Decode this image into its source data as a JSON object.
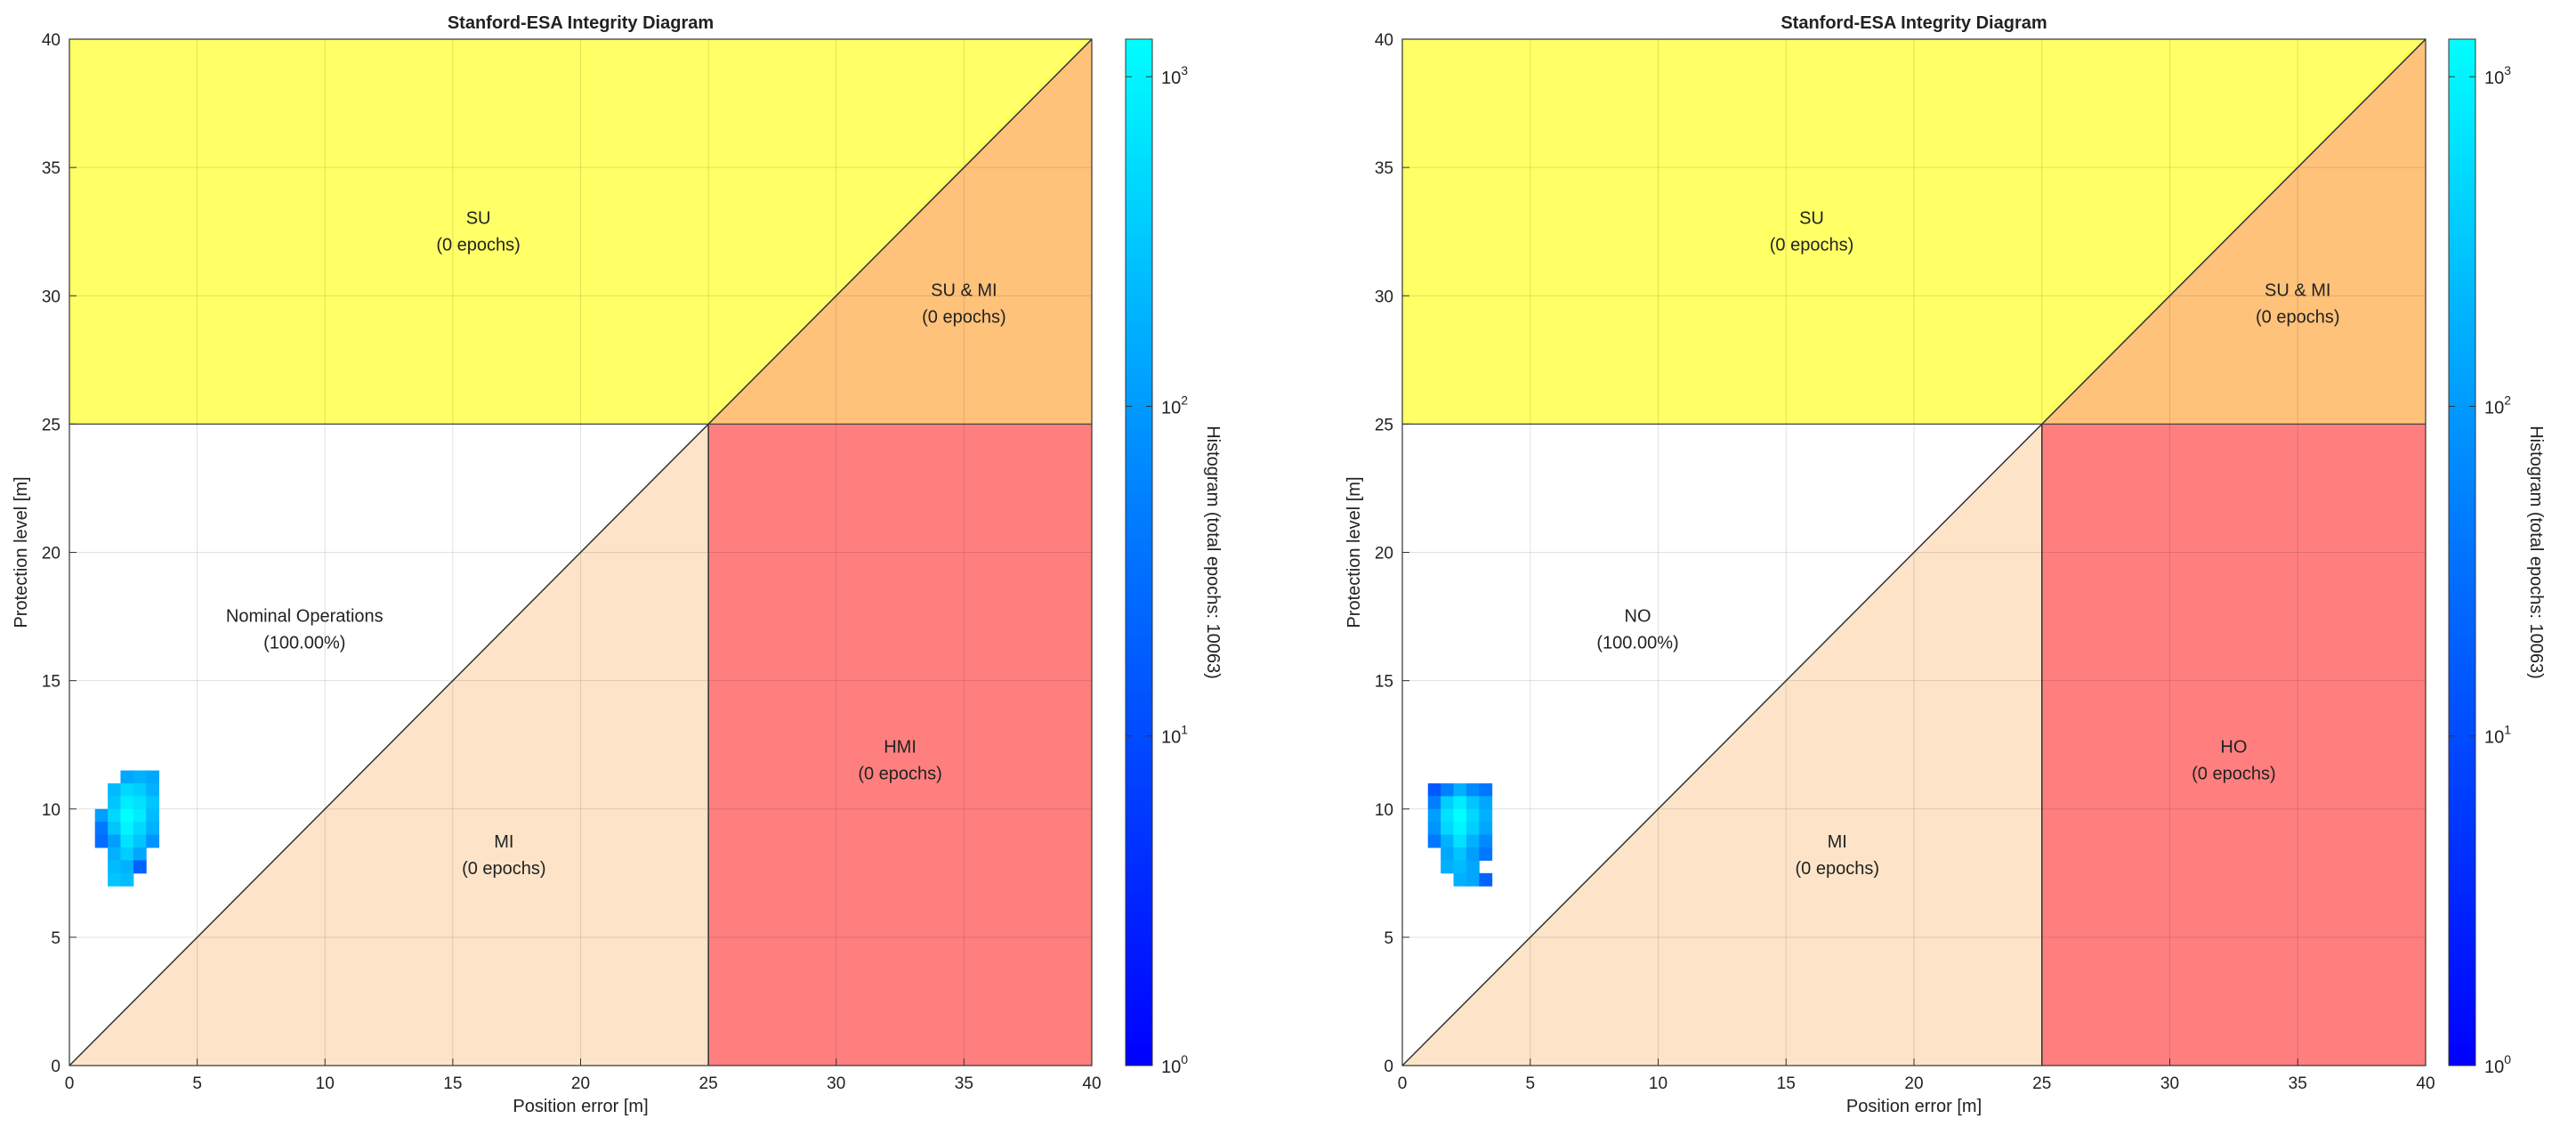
{
  "chart_data": [
    {
      "type": "heatmap",
      "title": "Stanford-ESA Integrity Diagram",
      "xlabel": "Position error [m]",
      "ylabel": "Protection level [m]",
      "xlim": [
        0,
        40
      ],
      "ylim": [
        0,
        40
      ],
      "xticks": [
        0,
        5,
        10,
        15,
        20,
        25,
        30,
        35,
        40
      ],
      "yticks": [
        0,
        5,
        10,
        15,
        20,
        25,
        30,
        35,
        40
      ],
      "alert_limit": 25,
      "grid": true,
      "colorbar": {
        "label": "Histogram (total epochs: 10063)",
        "scale": "log",
        "range": [
          1,
          1300
        ],
        "ticks": [
          {
            "value": 1,
            "base": "10",
            "exp": "0"
          },
          {
            "value": 10,
            "base": "10",
            "exp": "1"
          },
          {
            "value": 100,
            "base": "10",
            "exp": "2"
          },
          {
            "value": 1000,
            "base": "10",
            "exp": "3"
          }
        ],
        "color_low": "#0000ff",
        "color_high": "#00ffff"
      },
      "regions": [
        {
          "id": "su",
          "name": "SU",
          "detail": "(0 epochs)",
          "color": "#ffff66",
          "label_at": [
            16,
            32.8
          ]
        },
        {
          "id": "su_mi",
          "name": "SU & MI",
          "detail": "(0 epochs)",
          "color": "#ffc27a",
          "label_at": [
            35,
            30
          ]
        },
        {
          "id": "mi",
          "name": "MI",
          "detail": "(0 epochs)",
          "color": "#fde4c8",
          "label_at": [
            17,
            8.5
          ]
        },
        {
          "id": "hmi",
          "name": "HMI",
          "detail": "(0 epochs)",
          "color": "#ff7f7f",
          "label_at": [
            32.5,
            12.2
          ]
        },
        {
          "id": "no",
          "name": "Nominal Operations",
          "detail": "(100.00%)",
          "color": "#ffffff",
          "label_at": [
            9.2,
            17.3
          ]
        }
      ],
      "histogram": {
        "bin_size": 0.5,
        "cells": [
          [
            2,
            11,
            0.55
          ],
          [
            2.5,
            11,
            0.6
          ],
          [
            3,
            11,
            0.55
          ],
          [
            1.5,
            10.5,
            0.65
          ],
          [
            2,
            10.5,
            0.8
          ],
          [
            2.5,
            10.5,
            0.75
          ],
          [
            3,
            10.5,
            0.6
          ],
          [
            1.5,
            10,
            0.7
          ],
          [
            2,
            10,
            0.9
          ],
          [
            2.5,
            10,
            0.85
          ],
          [
            3,
            10,
            0.7
          ],
          [
            1,
            9.5,
            0.5
          ],
          [
            1.5,
            9.5,
            0.8
          ],
          [
            2,
            9.5,
            1.0
          ],
          [
            2.5,
            9.5,
            0.9
          ],
          [
            3,
            9.5,
            0.65
          ],
          [
            1,
            9,
            0.3
          ],
          [
            1.5,
            9,
            0.7
          ],
          [
            2,
            9,
            0.95
          ],
          [
            2.5,
            9,
            0.8
          ],
          [
            3,
            9,
            0.6
          ],
          [
            1,
            8.5,
            0.25
          ],
          [
            1.5,
            8.5,
            0.5
          ],
          [
            2,
            8.5,
            0.85
          ],
          [
            2.5,
            8.5,
            0.7
          ],
          [
            3,
            8.5,
            0.45
          ],
          [
            1.5,
            8,
            0.6
          ],
          [
            2,
            8,
            0.75
          ],
          [
            2.5,
            8,
            0.55
          ],
          [
            1.5,
            7.5,
            0.65
          ],
          [
            2,
            7.5,
            0.6
          ],
          [
            2.5,
            7.5,
            0.2
          ],
          [
            1.5,
            7,
            0.7
          ],
          [
            2,
            7,
            0.65
          ]
        ]
      }
    },
    {
      "type": "heatmap",
      "title": "Stanford-ESA Integrity Diagram",
      "xlabel": "Position error [m]",
      "ylabel": "Protection level [m]",
      "xlim": [
        0,
        40
      ],
      "ylim": [
        0,
        40
      ],
      "xticks": [
        0,
        5,
        10,
        15,
        20,
        25,
        30,
        35,
        40
      ],
      "yticks": [
        0,
        5,
        10,
        15,
        20,
        25,
        30,
        35,
        40
      ],
      "alert_limit": 25,
      "grid": true,
      "colorbar": {
        "label": "Histogram (total epochs: 10063)",
        "scale": "log",
        "range": [
          1,
          1300
        ],
        "ticks": [
          {
            "value": 1,
            "base": "10",
            "exp": "0"
          },
          {
            "value": 10,
            "base": "10",
            "exp": "1"
          },
          {
            "value": 100,
            "base": "10",
            "exp": "2"
          },
          {
            "value": 1000,
            "base": "10",
            "exp": "3"
          }
        ],
        "color_low": "#0000ff",
        "color_high": "#00ffff"
      },
      "regions": [
        {
          "id": "su",
          "name": "SU",
          "detail": "(0 epochs)",
          "color": "#ffff66",
          "label_at": [
            16,
            32.8
          ]
        },
        {
          "id": "su_mi",
          "name": "SU & MI",
          "detail": "(0 epochs)",
          "color": "#ffc27a",
          "label_at": [
            35,
            30
          ]
        },
        {
          "id": "mi",
          "name": "MI",
          "detail": "(0 epochs)",
          "color": "#fde4c8",
          "label_at": [
            17,
            8.5
          ]
        },
        {
          "id": "hmi",
          "name": "HO",
          "detail": "(0 epochs)",
          "color": "#ff7f7f",
          "label_at": [
            32.5,
            12.2
          ]
        },
        {
          "id": "no",
          "name": "NO",
          "detail": "(100.00%)",
          "color": "#ffffff",
          "label_at": [
            9.2,
            17.3
          ]
        }
      ],
      "histogram": {
        "bin_size": 0.5,
        "cells": [
          [
            1,
            10.5,
            0.15
          ],
          [
            1.5,
            10.5,
            0.35
          ],
          [
            2,
            10.5,
            0.6
          ],
          [
            2.5,
            10.5,
            0.4
          ],
          [
            3,
            10.5,
            0.3
          ],
          [
            1,
            10,
            0.35
          ],
          [
            1.5,
            10,
            0.75
          ],
          [
            2,
            10,
            0.9
          ],
          [
            2.5,
            10,
            0.7
          ],
          [
            3,
            10,
            0.55
          ],
          [
            1,
            9.5,
            0.5
          ],
          [
            1.5,
            9.5,
            0.85
          ],
          [
            2,
            9.5,
            1.0
          ],
          [
            2.5,
            9.5,
            0.8
          ],
          [
            3,
            9.5,
            0.6
          ],
          [
            1,
            9,
            0.45
          ],
          [
            1.5,
            9,
            0.8
          ],
          [
            2,
            9,
            0.95
          ],
          [
            2.5,
            9,
            0.75
          ],
          [
            3,
            9,
            0.55
          ],
          [
            1,
            8.5,
            0.3
          ],
          [
            1.5,
            8.5,
            0.6
          ],
          [
            2,
            8.5,
            0.85
          ],
          [
            2.5,
            8.5,
            0.6
          ],
          [
            3,
            8.5,
            0.4
          ],
          [
            1.5,
            8,
            0.55
          ],
          [
            2,
            8,
            0.7
          ],
          [
            2.5,
            8,
            0.5
          ],
          [
            3,
            8,
            0.3
          ],
          [
            1.5,
            7.5,
            0.6
          ],
          [
            2,
            7.5,
            0.65
          ],
          [
            2.5,
            7.5,
            0.55
          ],
          [
            2,
            7,
            0.6
          ],
          [
            2.5,
            7,
            0.55
          ],
          [
            3,
            7,
            0.2
          ]
        ]
      }
    }
  ]
}
